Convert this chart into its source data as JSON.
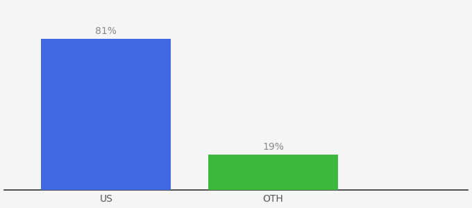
{
  "categories": [
    "US",
    "OTH"
  ],
  "values": [
    81,
    19
  ],
  "bar_colors": [
    "#4169E1",
    "#3CB93C"
  ],
  "bar_labels": [
    "81%",
    "19%"
  ],
  "background_color": "#f5f5f5",
  "ylim": [
    0,
    100
  ],
  "label_fontsize": 10,
  "tick_fontsize": 10,
  "label_color": "#888888",
  "tick_color": "#555555",
  "bar_width": 0.28,
  "x_positions": [
    0.22,
    0.58
  ],
  "xlim": [
    0.0,
    1.0
  ],
  "spine_color": "#333333"
}
